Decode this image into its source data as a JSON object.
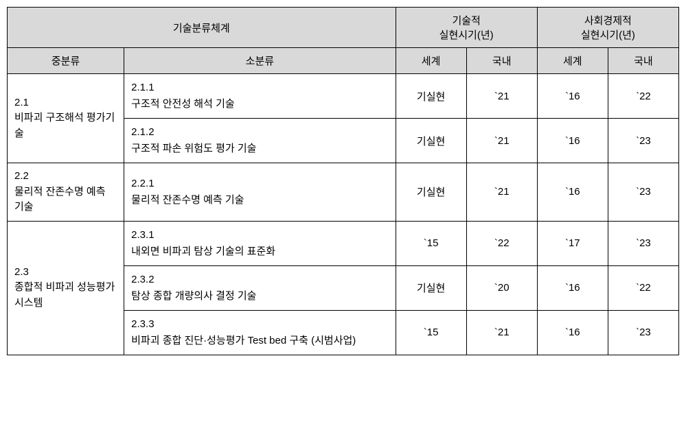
{
  "headers": {
    "classification": "기술분류체계",
    "technical": "기술적\n실현시기(년)",
    "socioeconomic": "사회경제적\n실현시기(년)",
    "midCategory": "중분류",
    "subCategory": "소분류",
    "world": "세계",
    "domestic": "국내"
  },
  "colors": {
    "headerBg": "#d9d9d9",
    "border": "#000000",
    "background": "#ffffff",
    "text": "#000000"
  },
  "typography": {
    "fontFamily": "Malgun Gothic",
    "fontSize": 15,
    "lineHeight": 1.5
  },
  "columns": {
    "midWidth": 170,
    "subWidth": 395,
    "valueWidth": 103
  },
  "rows": [
    {
      "midCode": "2.1",
      "midDesc": "비파괴  구조해석 평가기술",
      "rowspan": 2,
      "subCode": "2.1.1",
      "subDesc": "구조적 안전성 해석 기술",
      "techWorld": "기실현",
      "techDomestic": "`21",
      "socWorld": "`16",
      "socDomestic": "`22"
    },
    {
      "subCode": "2.1.2",
      "subDesc": "구조적 파손 위험도 평가 기술",
      "techWorld": "기실현",
      "techDomestic": "`21",
      "socWorld": "`16",
      "socDomestic": "`23"
    },
    {
      "midCode": "2.2",
      "midDesc": "물리적  잔존수명 예측 기술",
      "rowspan": 1,
      "subCode": "2.2.1",
      "subDesc": "물리적 잔존수명 예측 기술",
      "techWorld": "기실현",
      "techDomestic": "`21",
      "socWorld": "`16",
      "socDomestic": "`23"
    },
    {
      "midCode": "2.3",
      "midDesc": "종합적    비파괴 성능평가 시스템",
      "rowspan": 3,
      "subCode": "2.3.1",
      "subDesc": "내외면 비파괴 탐상 기술의   표준화",
      "techWorld": "`15",
      "techDomestic": "`22",
      "socWorld": "`17",
      "socDomestic": "`23"
    },
    {
      "subCode": "2.3.2",
      "subDesc": "탐상 종합 개량의사 결정 기술",
      "techWorld": "기실현",
      "techDomestic": "`20",
      "socWorld": "`16",
      "socDomestic": "`22"
    },
    {
      "subCode": "2.3.3",
      "subDesc": "비파괴 종합 진단·성능평가 Test bed 구축 (시범사업)",
      "techWorld": "`15",
      "techDomestic": "`21",
      "socWorld": "`16",
      "socDomestic": "`23"
    }
  ]
}
